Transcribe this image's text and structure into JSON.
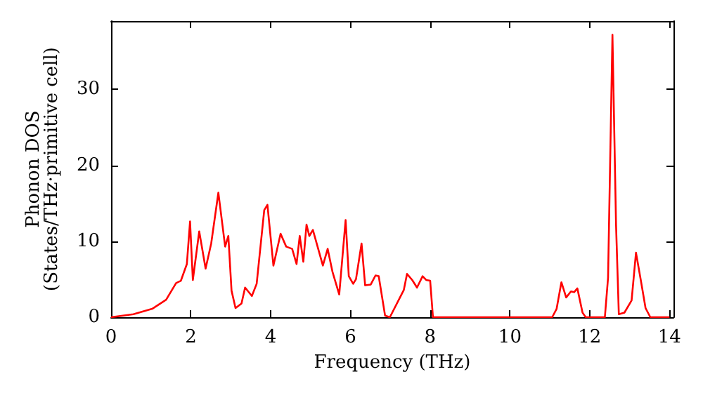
{
  "chart_data": {
    "type": "line",
    "xlabel": "Frequency (THz)",
    "ylabel": "Phonon DOS\n(States/THz·primitive cell)",
    "xlim": [
      0,
      14.1
    ],
    "xticks": [
      0,
      2,
      4,
      6,
      8,
      10,
      12,
      14
    ],
    "ylim": [
      0,
      39
    ],
    "yticks": [
      0,
      10,
      20,
      30
    ],
    "grid": false,
    "marker": "none",
    "line_style": "solid",
    "series": [
      {
        "color": "#ff0000",
        "x": [
          0,
          0.56,
          1.03,
          1.38,
          1.63,
          1.75,
          1.9,
          1.98,
          2.05,
          2.21,
          2.37,
          2.51,
          2.69,
          2.86,
          2.94,
          3.02,
          3.12,
          3.27,
          3.36,
          3.53,
          3.65,
          3.84,
          3.92,
          4.07,
          4.25,
          4.39,
          4.54,
          4.65,
          4.73,
          4.82,
          4.9,
          4.97,
          5.06,
          5.31,
          5.43,
          5.55,
          5.72,
          5.88,
          5.96,
          6.07,
          6.14,
          6.28,
          6.37,
          6.51,
          6.63,
          6.71,
          6.87,
          6.99,
          7.34,
          7.42,
          7.55,
          7.67,
          7.81,
          7.9,
          8.0,
          8.07,
          11.06,
          11.17,
          11.29,
          11.41,
          11.53,
          11.61,
          11.69,
          11.82,
          11.9,
          12.38,
          12.46,
          12.57,
          12.66,
          12.73,
          12.87,
          13.05,
          13.16,
          13.29,
          13.4,
          13.52,
          14.0
        ],
        "values": [
          0,
          0.4,
          1.1,
          2.3,
          4.5,
          4.8,
          7,
          12.6,
          4.9,
          11.3,
          6.4,
          9.7,
          16.4,
          9.3,
          10.7,
          3.5,
          1.2,
          1.8,
          3.9,
          2.8,
          4.4,
          14.1,
          14.8,
          6.8,
          11,
          9.3,
          9,
          7,
          10.7,
          7.3,
          12.2,
          10.7,
          11.5,
          6.8,
          9,
          6,
          3,
          12.8,
          5.4,
          4.4,
          5,
          9.7,
          4.2,
          4.3,
          5.5,
          5.4,
          0.2,
          0,
          3.6,
          5.7,
          4.9,
          3.9,
          5.4,
          4.9,
          4.8,
          0,
          0,
          1.1,
          4.6,
          2.6,
          3.4,
          3.3,
          3.8,
          0.6,
          0,
          0,
          5.2,
          37.2,
          12.2,
          0.4,
          0.6,
          2.2,
          8.5,
          4.6,
          1.2,
          0,
          0
        ]
      }
    ]
  }
}
